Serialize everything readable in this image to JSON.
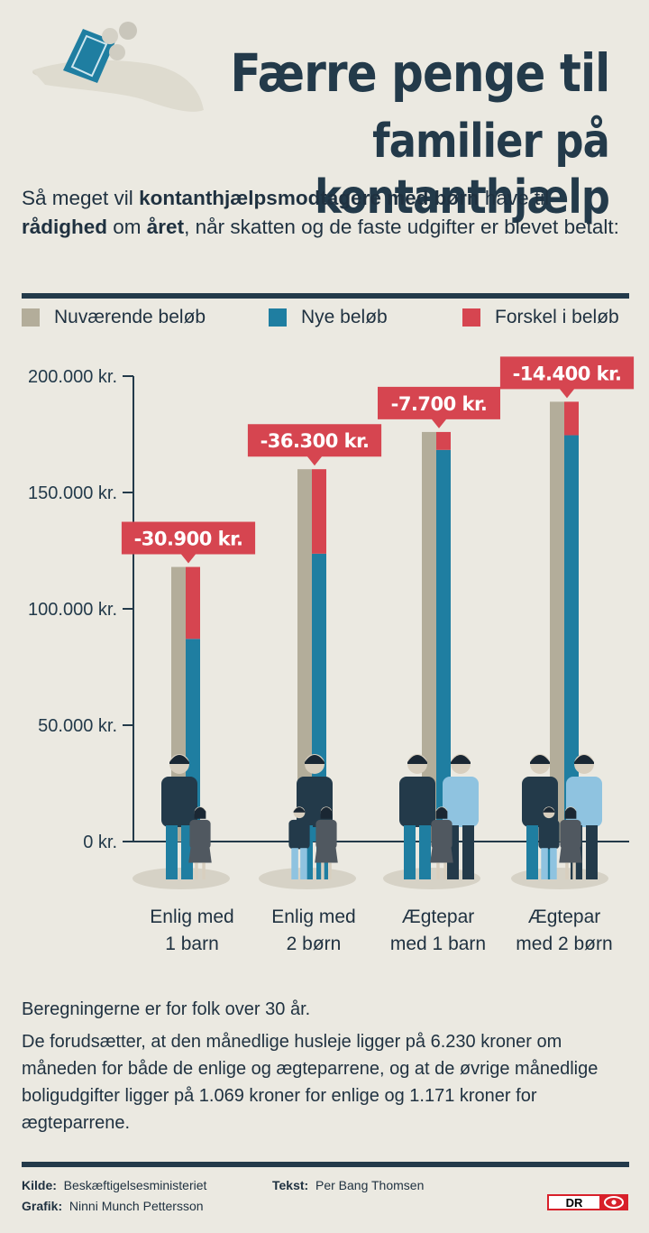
{
  "header": {
    "title_line1": "Færre penge til",
    "title_line2": "familier på kontanthjælp"
  },
  "subtitle": {
    "p1": "Så meget vil ",
    "b1": "kontanthjælpsmodtagere med børn",
    "p2": " have til ",
    "b2": "rådighed",
    "p3": " om ",
    "b3": "året",
    "p4": ", når skatten og de faste udgifter er blevet betalt:"
  },
  "legend": [
    {
      "label": "Nuværende beløb",
      "color": "#b3ad9a"
    },
    {
      "label": "Nye beløb",
      "color": "#1f7ea1"
    },
    {
      "label": "Forskel i beløb",
      "color": "#d64550"
    }
  ],
  "chart_data": {
    "type": "bar",
    "categories": [
      "Enlig med 1 barn",
      "Enlig med 2 børn",
      "Ægtepar med 1 barn",
      "Ægtepar med 2 børn"
    ],
    "category_lines": [
      [
        "Enlig med",
        "1 barn"
      ],
      [
        "Enlig med",
        "2 børn"
      ],
      [
        "Ægtepar",
        "med 1 barn"
      ],
      [
        "Ægtepar",
        "med 2 børn"
      ]
    ],
    "series": [
      {
        "name": "Nuværende beløb",
        "values": [
          118000,
          160000,
          176000,
          189000
        ]
      },
      {
        "name": "Nye beløb",
        "values": [
          87100,
          123700,
          168300,
          174600
        ]
      },
      {
        "name": "Forskel i beløb",
        "values": [
          30900,
          36300,
          7700,
          14400
        ]
      }
    ],
    "difference_labels": [
      "-30.900 kr.",
      "-36.300 kr.",
      "-7.700 kr.",
      "-14.400 kr."
    ],
    "y_ticks": [
      0,
      50000,
      100000,
      150000,
      200000
    ],
    "y_tick_labels": [
      "0 kr.",
      "50.000 kr.",
      "100.000 kr.",
      "150.000 kr.",
      "200.000 kr."
    ],
    "ylim": [
      0,
      200000
    ],
    "grid": false,
    "legend_position": "top"
  },
  "notes": {
    "line1": "Beregningerne er for folk over 30 år.",
    "line2": "De forudsætter, at den månedlige husleje ligger på 6.230 kroner om måneden for både de enlige og ægteparrene, og at de øvrige månedlige boligudgifter ligger på 1.069 kroner for enlige og 1.171 kroner for ægteparrene."
  },
  "credits": {
    "source_label": "Kilde:",
    "source": "Beskæftigelsesministeriet",
    "text_label": "Tekst:",
    "text": "Per Bang Thomsen",
    "graphic_label": "Grafik:",
    "graphic": "Ninni Munch Pettersson",
    "logo": "DR"
  },
  "icons": {
    "hero": "hand-with-money-icon",
    "family": "family-silhouette-icon"
  }
}
